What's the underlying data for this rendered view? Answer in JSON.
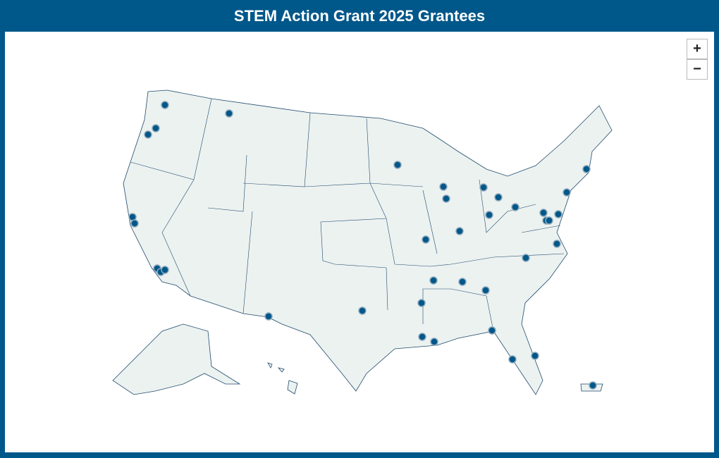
{
  "header": {
    "title": "STEM Action Grant 2025 Grantees"
  },
  "controls": {
    "zoom_in": "+",
    "zoom_out": "−"
  }
}
